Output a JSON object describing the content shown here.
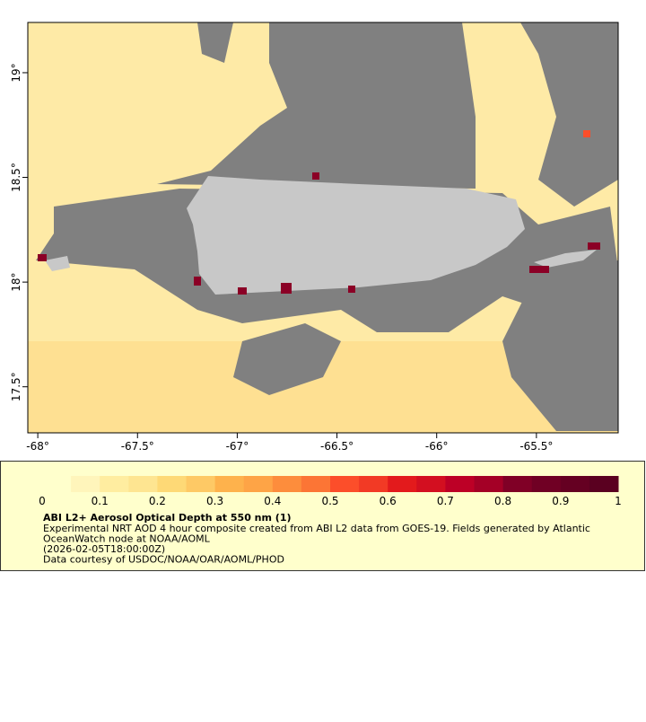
{
  "map": {
    "xlim": [
      -68.05,
      -65.09
    ],
    "ylim": [
      17.28,
      19.24
    ],
    "xticks": [
      {
        "value": -68,
        "label": "-68°"
      },
      {
        "value": -67.5,
        "label": "-67.5°"
      },
      {
        "value": -67,
        "label": "-67°"
      },
      {
        "value": -66.5,
        "label": "-66.5°"
      },
      {
        "value": -66,
        "label": "-66°"
      },
      {
        "value": -65.5,
        "label": "-65.5°"
      }
    ],
    "yticks": [
      {
        "value": 19,
        "label": "19°"
      },
      {
        "value": 18.5,
        "label": "18.5°"
      },
      {
        "value": 18,
        "label": "18°"
      },
      {
        "value": 17.5,
        "label": "17.5°"
      }
    ]
  },
  "colorbar": {
    "lim": [
      0,
      1
    ],
    "ticks": [
      0,
      0.1,
      0.2,
      0.3,
      0.4,
      0.5,
      0.6,
      0.7,
      0.8,
      0.9,
      1
    ],
    "colormap": [
      "#ffffcc",
      "#fff5bb",
      "#ffeda0",
      "#fee591",
      "#fed976",
      "#fec965",
      "#feb24c",
      "#fea446",
      "#fd8d3c",
      "#fc7535",
      "#fc4e2a",
      "#f23a25",
      "#e31a1c",
      "#d30f20",
      "#bd0026",
      "#a40026",
      "#800026",
      "#700024",
      "#650022",
      "#5a0020"
    ]
  },
  "caption": {
    "title": "ABI L2+ Aerosol Optical Depth at 550 nm (1)",
    "lines": [
      "Experimental NRT AOD 4 hour composite created from ABI L2 data from GOES-19. Fields generated by Atlantic",
      "OceanWatch node at NOAA/AOML",
      "(2026-02-05T18:00:00Z)",
      "Data courtesy of USDOC/NOAA/OAR/AOML/PHOD"
    ]
  }
}
